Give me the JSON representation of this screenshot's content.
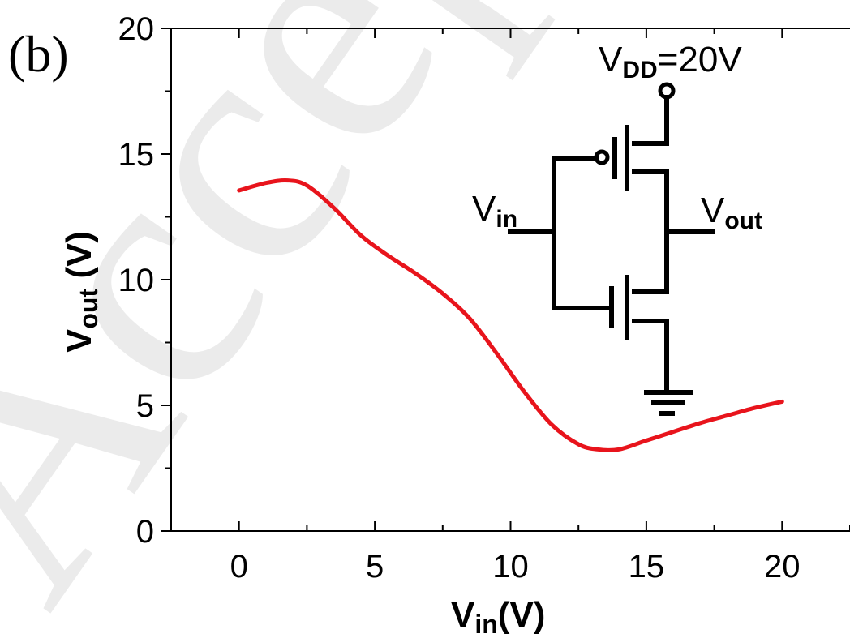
{
  "panel_label": "(b)",
  "watermark": "Accepted Manuscript",
  "circuit": {
    "vdd_label": "V",
    "vdd_sub": "DD",
    "vdd_value": "=20V",
    "vin_label": "V",
    "vin_sub": "in",
    "vout_label": "V",
    "vout_sub": "out"
  },
  "chart_data": {
    "type": "line",
    "xlabel": "V",
    "xlabel_sub": "in",
    "xlabel_unit": "(V)",
    "ylabel": "V",
    "ylabel_sub": "out",
    "ylabel_unit": " (V)",
    "xlim": [
      -2.5,
      22.5
    ],
    "ylim": [
      0,
      20
    ],
    "xticks": [
      0,
      5,
      10,
      15,
      20
    ],
    "yticks": [
      0,
      5,
      10,
      15,
      20
    ],
    "color": "#e8141c",
    "series": [
      {
        "x": [
          0,
          1,
          1.8,
          2.5,
          3.5,
          4.5,
          5.5,
          6.5,
          7.5,
          8.5,
          9.5,
          10.5,
          11.5,
          12.5,
          13.2,
          14,
          15,
          16,
          17,
          18,
          19,
          20
        ],
        "y": [
          13.55,
          13.85,
          13.95,
          13.75,
          12.85,
          11.75,
          10.95,
          10.25,
          9.45,
          8.45,
          7.05,
          5.55,
          4.25,
          3.45,
          3.25,
          3.25,
          3.6,
          3.95,
          4.3,
          4.6,
          4.9,
          5.15
        ]
      }
    ]
  }
}
